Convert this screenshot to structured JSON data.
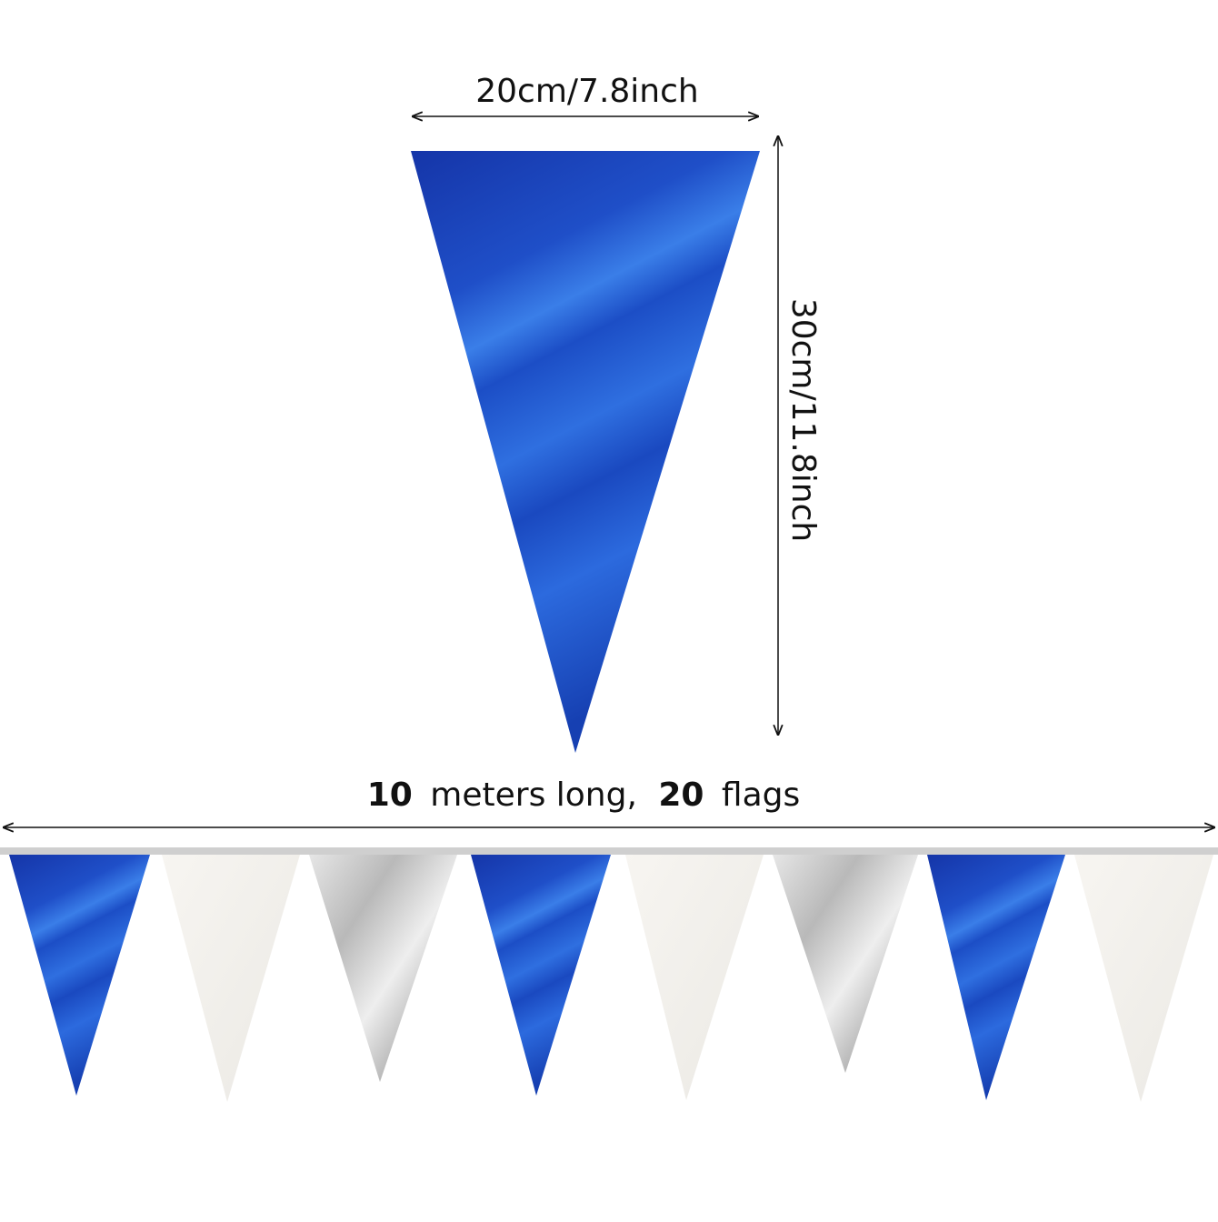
{
  "flag_size": {
    "width": "20cm/7.8inch",
    "height": "30cm/11.8inch"
  },
  "banner": {
    "length_parts": [
      "10",
      "meters long,",
      "20",
      "flags"
    ]
  }
}
